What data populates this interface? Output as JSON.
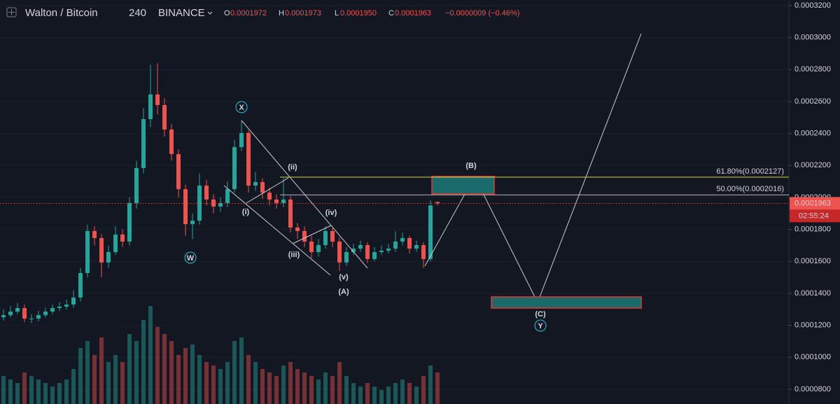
{
  "header": {
    "symbol": "Walton / Bitcoin",
    "interval": "240",
    "exchange": "BINANCE",
    "ohlc": [
      {
        "key": "O",
        "value": "0.0001972"
      },
      {
        "key": "H",
        "value": "0.0001973"
      },
      {
        "key": "L",
        "value": "0.0001950"
      },
      {
        "key": "C",
        "value": "0.0001963"
      }
    ],
    "change": "−0.0000009 (−0.46%)"
  },
  "chart_data": {
    "type": "candlestick",
    "open": [
      0.000125,
      0.0001264,
      0.0001286,
      0.0001308,
      0.0001242,
      0.0001242,
      0.0001264,
      0.0001286,
      0.0001308,
      0.0001317,
      0.000133,
      0.0001374,
      0.0001527,
      0.000179,
      0.0001746,
      0.0001593,
      0.0001658,
      0.0001768,
      0.0001724,
      0.0001965,
      0.0002184,
      0.000249,
      0.0002644,
      0.0002578,
      0.0002425,
      0.0002271,
      0.0002052,
      0.0001833,
      0.0001855,
      0.0002074,
      0.0001987,
      0.0001943,
      0.0001965,
      0.0002052,
      0.0002315,
      0.0002403,
      0.0002074,
      0.0002096,
      0.000203,
      0.0001987,
      0.0001965,
      0.0001987,
      0.0001812,
      0.000179,
      0.0001724,
      0.0001658,
      0.0001702,
      0.000179,
      0.0001724,
      0.0001593,
      0.0001658,
      0.000168,
      0.0001702,
      0.0001615,
      0.0001658,
      0.0001667,
      0.000168,
      0.0001724,
      0.0001746,
      0.000168,
      0.0001702,
      0.0001615,
      0.0001972
    ],
    "high": [
      0.00013,
      0.000132,
      0.000134,
      0.000133,
      0.000127,
      0.000129,
      0.000131,
      0.000133,
      0.0001345,
      0.000136,
      0.000142,
      0.000156,
      0.000183,
      0.000182,
      0.000177,
      0.00017,
      0.000182,
      0.00018,
      0.0002,
      0.000223,
      0.000256,
      0.000283,
      0.000284,
      0.000262,
      0.000246,
      0.00023,
      0.000208,
      0.00019,
      0.000215,
      0.000211,
      0.000202,
      0.0002,
      0.00021,
      0.000236,
      0.000248,
      0.000242,
      0.000216,
      0.000212,
      0.000206,
      0.000202,
      0.000212,
      0.000201,
      0.000184,
      0.000182,
      0.000176,
      0.000174,
      0.000182,
      0.000181,
      0.000175,
      0.000169,
      0.000171,
      0.000173,
      0.000172,
      0.000169,
      0.00017,
      0.000171,
      0.000179,
      0.000178,
      0.000176,
      0.000173,
      0.000172,
      0.000198,
      0.0001973
    ],
    "low": [
      0.000123,
      0.000125,
      0.000127,
      0.000122,
      0.0001215,
      0.0001225,
      0.000125,
      0.000127,
      0.000129,
      0.00013,
      0.000131,
      0.000135,
      0.00015,
      0.00017,
      0.00015,
      0.000156,
      0.000164,
      0.000169,
      0.00017,
      0.000193,
      0.000215,
      0.000244,
      0.000252,
      0.000238,
      0.000223,
      0.0002,
      0.000176,
      0.000174,
      0.000183,
      0.000195,
      0.00019,
      0.000191,
      0.000194,
      0.000203,
      0.000229,
      0.000203,
      0.000204,
      0.000199,
      0.000195,
      0.000193,
      0.000194,
      0.000178,
      0.000174,
      0.000169,
      0.000162,
      0.000163,
      0.000168,
      0.000169,
      0.000154,
      0.000157,
      0.000164,
      0.000166,
      0.000159,
      0.00016,
      0.000164,
      0.000165,
      0.000166,
      0.00017,
      0.000165,
      0.000166,
      0.000156,
      0.00016,
      0.000195
    ],
    "close": [
      0.0001264,
      0.0001286,
      0.0001308,
      0.0001242,
      0.0001242,
      0.0001264,
      0.0001286,
      0.0001308,
      0.0001317,
      0.000133,
      0.0001374,
      0.0001527,
      0.000179,
      0.0001746,
      0.0001593,
      0.0001658,
      0.0001768,
      0.0001724,
      0.0001965,
      0.0002184,
      0.000249,
      0.0002644,
      0.0002578,
      0.0002425,
      0.0002271,
      0.0002052,
      0.0001833,
      0.0001855,
      0.0002074,
      0.0001987,
      0.0001943,
      0.0001965,
      0.0002052,
      0.0002315,
      0.0002403,
      0.0002074,
      0.0002096,
      0.000203,
      0.0001987,
      0.0001965,
      0.0001987,
      0.0001812,
      0.000179,
      0.0001724,
      0.0001658,
      0.0001702,
      0.000179,
      0.0001724,
      0.0001593,
      0.0001658,
      0.000168,
      0.0001702,
      0.0001615,
      0.0001658,
      0.0001667,
      0.000168,
      0.0001724,
      0.0001746,
      0.000168,
      0.0001702,
      0.0001615,
      0.000195,
      0.0001963
    ],
    "volume": [
      40,
      35,
      30,
      45,
      40,
      35,
      30,
      25,
      30,
      35,
      50,
      80,
      90,
      70,
      95,
      60,
      70,
      60,
      100,
      90,
      120,
      140,
      110,
      100,
      90,
      70,
      80,
      85,
      70,
      60,
      55,
      50,
      60,
      90,
      95,
      70,
      60,
      50,
      45,
      40,
      55,
      60,
      50,
      45,
      40,
      35,
      45,
      40,
      60,
      40,
      30,
      25,
      30,
      25,
      20,
      25,
      30,
      35,
      30,
      25,
      40,
      55,
      45
    ],
    "up_color": "#26a69a",
    "down_color": "#ef5350",
    "ylim": [
      7.08e-05,
      0.0003235
    ],
    "yticks": [
      {
        "value": 0.00032,
        "label": "0.0003200"
      },
      {
        "value": 0.0003,
        "label": "0.0003000"
      },
      {
        "value": 0.00028,
        "label": "0.0002800"
      },
      {
        "value": 0.00026,
        "label": "0.0002600"
      },
      {
        "value": 0.00024,
        "label": "0.0002400"
      },
      {
        "value": 0.00022,
        "label": "0.0002200"
      },
      {
        "value": 0.0002,
        "label": "0.0002000"
      },
      {
        "value": 0.00018,
        "label": "0.0001800"
      },
      {
        "value": 0.00016,
        "label": "0.0001600"
      },
      {
        "value": 0.00014,
        "label": "0.0001400"
      },
      {
        "value": 0.00012,
        "label": "0.0001200"
      },
      {
        "value": 0.0001,
        "label": "0.0001000"
      },
      {
        "value": 8e-05,
        "label": "0.0000800"
      }
    ],
    "grid": true,
    "countdown": "02:55:24",
    "fib_levels": [
      {
        "label": "61.80%(0.0002127)",
        "value": 0.0002127,
        "color": "#d6d64a"
      },
      {
        "label": "50.00%(0.0002016)",
        "value": 0.0002016,
        "color": "#b2b5be"
      }
    ],
    "wave_labels": [
      {
        "text": "X",
        "color": "#26c6da"
      },
      {
        "text": "W",
        "color": "#26c6da"
      },
      {
        "text": "Y",
        "color": "#26c6da"
      },
      {
        "text": "(i)",
        "color": "#b455d6"
      },
      {
        "text": "(ii)",
        "color": "#b455d6"
      },
      {
        "text": "(iii)",
        "color": "#b455d6"
      },
      {
        "text": "(iv)",
        "color": "#b455d6"
      },
      {
        "text": "(v)",
        "color": "#b455d6"
      },
      {
        "text": "(A)",
        "color": "#e0d45a"
      },
      {
        "text": "(B)",
        "color": "#e0d45a"
      },
      {
        "text": "(C)",
        "color": "#e0d45a"
      }
    ]
  }
}
